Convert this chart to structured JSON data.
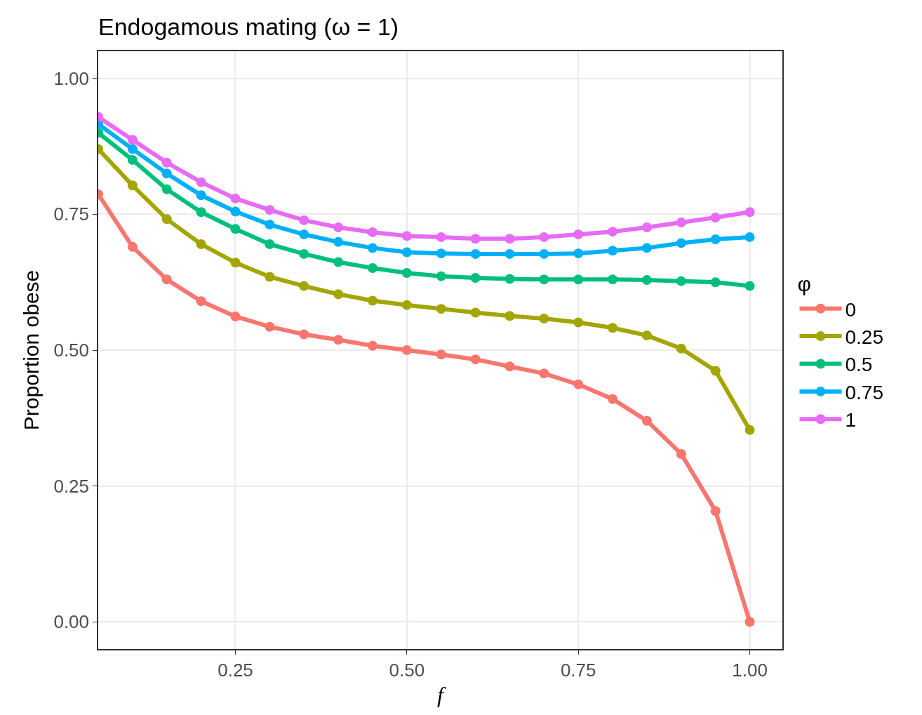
{
  "chart_data": {
    "type": "line",
    "title": "Endogamous mating (ω = 1)",
    "xlabel": "f",
    "ylabel": "Proportion obese",
    "legend_title": "φ",
    "x": [
      0.05,
      0.1,
      0.15,
      0.2,
      0.25,
      0.3,
      0.35,
      0.4,
      0.45,
      0.5,
      0.55,
      0.6,
      0.65,
      0.7,
      0.75,
      0.8,
      0.85,
      0.9,
      0.95,
      1.0
    ],
    "series": [
      {
        "name": "0",
        "color": "#f8766d",
        "values": [
          0.787,
          0.69,
          0.63,
          0.59,
          0.562,
          0.543,
          0.529,
          0.519,
          0.508,
          0.5,
          0.492,
          0.483,
          0.47,
          0.457,
          0.437,
          0.41,
          0.37,
          0.309,
          0.204,
          0.0
        ]
      },
      {
        "name": "0.25",
        "color": "#a3a500",
        "values": [
          0.87,
          0.803,
          0.741,
          0.695,
          0.661,
          0.635,
          0.618,
          0.603,
          0.591,
          0.583,
          0.576,
          0.569,
          0.563,
          0.558,
          0.551,
          0.541,
          0.527,
          0.503,
          0.462,
          0.353
        ]
      },
      {
        "name": "0.5",
        "color": "#00bf7d",
        "values": [
          0.9,
          0.85,
          0.796,
          0.754,
          0.723,
          0.695,
          0.677,
          0.662,
          0.651,
          0.642,
          0.636,
          0.633,
          0.631,
          0.63,
          0.63,
          0.63,
          0.629,
          0.627,
          0.625,
          0.618
        ]
      },
      {
        "name": "0.75",
        "color": "#00b0f6",
        "values": [
          0.916,
          0.87,
          0.825,
          0.785,
          0.755,
          0.731,
          0.713,
          0.699,
          0.688,
          0.68,
          0.678,
          0.677,
          0.677,
          0.677,
          0.678,
          0.683,
          0.688,
          0.697,
          0.704,
          0.708
        ]
      },
      {
        "name": "1",
        "color": "#e76bf3",
        "values": [
          0.929,
          0.887,
          0.845,
          0.809,
          0.779,
          0.758,
          0.739,
          0.726,
          0.717,
          0.71,
          0.708,
          0.705,
          0.705,
          0.708,
          0.713,
          0.718,
          0.726,
          0.735,
          0.744,
          0.754
        ]
      }
    ],
    "xlim": [
      0.05,
      1.0475
    ],
    "xticks": [
      {
        "value": 0.25,
        "label": "0.25"
      },
      {
        "value": 0.5,
        "label": "0.50"
      },
      {
        "value": 0.75,
        "label": "0.75"
      },
      {
        "value": 1,
        "label": "1.00"
      }
    ],
    "ylim": [
      -0.05,
      1.05
    ],
    "yticks": [
      {
        "value": 0,
        "label": "0.00"
      },
      {
        "value": 0.25,
        "label": "0.25"
      },
      {
        "value": 0.5,
        "label": "0.50"
      },
      {
        "value": 0.75,
        "label": "0.75"
      },
      {
        "value": 1,
        "label": "1.00"
      }
    ],
    "grid": true,
    "legend": "right",
    "marker": "circle",
    "line_style": "solid"
  }
}
